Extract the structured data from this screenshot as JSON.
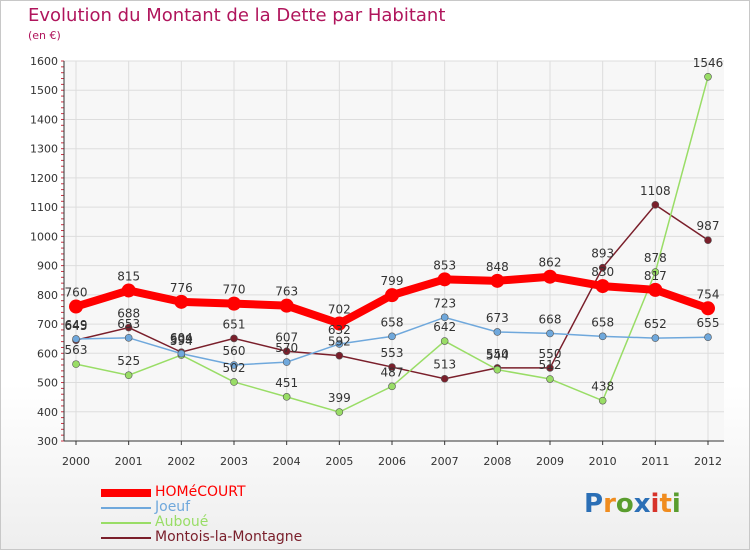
{
  "title": "Evolution du Montant de la Dette par Habitant",
  "subtitle": "(en €)",
  "logo": {
    "letters": [
      "P",
      "r",
      "o",
      "x",
      "i",
      "t",
      "i"
    ],
    "colors": [
      "#2b6fb6",
      "#f08c1e",
      "#5a9d2e",
      "#2b6fb6",
      "#d7332a",
      "#f08c1e",
      "#5a9d2e"
    ]
  },
  "chart_data": {
    "type": "line",
    "x": [
      "2000",
      "2001",
      "2002",
      "2003",
      "2004",
      "2005",
      "2006",
      "2007",
      "2008",
      "2009",
      "2010",
      "2011",
      "2012"
    ],
    "ylim": [
      300,
      1600
    ],
    "yticks": [
      300,
      400,
      500,
      600,
      700,
      800,
      900,
      1000,
      1100,
      1200,
      1300,
      1400,
      1500,
      1600
    ],
    "grid": true,
    "legend_position": "bottom-left",
    "series": [
      {
        "name": "HOMéCOURT",
        "color": "#ff0000",
        "values": [
          760,
          815,
          776,
          770,
          763,
          702,
          799,
          853,
          848,
          862,
          830,
          817,
          754
        ],
        "labels": [
          "760",
          "815",
          "776",
          "770",
          "763",
          "702",
          "799",
          "853",
          "848",
          "862",
          "830",
          "817",
          "754"
        ]
      },
      {
        "name": "Joeuf",
        "color": "#6fa8dc",
        "values": [
          649,
          653,
          599,
          560,
          570,
          632,
          658,
          723,
          673,
          668,
          658,
          652,
          655
        ],
        "labels": [
          "649",
          "653",
          "599",
          "560",
          "570",
          "632",
          "658",
          "723",
          "673",
          "668",
          "658",
          "652",
          "655"
        ]
      },
      {
        "name": "Auboué",
        "color": "#99dd66",
        "values": [
          563,
          525,
          594,
          502,
          451,
          399,
          487,
          642,
          544,
          512,
          438,
          878,
          1546
        ],
        "labels": [
          "563",
          "525",
          "594",
          "502",
          "451",
          "399",
          "487",
          "642",
          "544",
          "512",
          "438",
          "878",
          "1546"
        ]
      },
      {
        "name": "Montois-la-Montagne",
        "color": "#7a1f2b",
        "values": [
          645,
          688,
          604,
          651,
          607,
          592,
          553,
          513,
          550,
          550,
          893,
          1108,
          987
        ],
        "labels": [
          "645",
          "688",
          "604",
          "651",
          "607",
          "592",
          "553",
          "513",
          "550",
          "550",
          "893",
          "1108",
          "987"
        ]
      }
    ]
  }
}
